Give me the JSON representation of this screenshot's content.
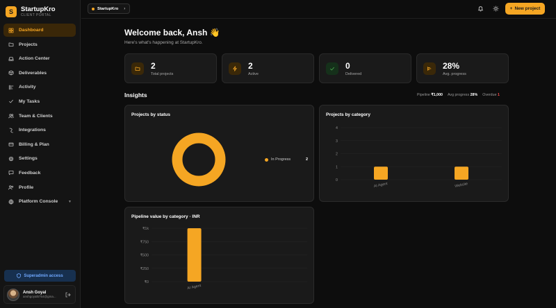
{
  "brand": {
    "name": "StartupKro",
    "subtitle": "CLIENT PORTAL",
    "logo_letter": "S"
  },
  "nav": [
    {
      "label": "Dashboard",
      "icon": "dashboard-icon",
      "active": true
    },
    {
      "label": "Projects",
      "icon": "folder-icon"
    },
    {
      "label": "Action Center",
      "icon": "inbox-icon"
    },
    {
      "label": "Deliverables",
      "icon": "package-icon"
    },
    {
      "label": "Activity",
      "icon": "activity-icon"
    },
    {
      "label": "My Tasks",
      "icon": "check-icon"
    },
    {
      "label": "Team & Clients",
      "icon": "users-icon"
    },
    {
      "label": "Integrations",
      "icon": "plug-icon"
    },
    {
      "label": "Billing & Plan",
      "icon": "card-icon"
    },
    {
      "label": "Settings",
      "icon": "gear-icon"
    },
    {
      "label": "Feedback",
      "icon": "message-icon"
    },
    {
      "label": "Profile",
      "icon": "profile-icon"
    },
    {
      "label": "Platform Console",
      "icon": "globe-icon",
      "chevron": "▼"
    }
  ],
  "superadmin": {
    "label": "Superadmin access"
  },
  "user": {
    "name": "Ansh Goyal",
    "email": "anshgoyal5754@gma..."
  },
  "topbar": {
    "workspace": "StartupKro",
    "new_project_label": "New project"
  },
  "welcome": {
    "title": "Welcome back, Ansh 👋",
    "subtitle": "Here's what's happening at StartupKro."
  },
  "stats": [
    {
      "value": "2",
      "label": "Total projects",
      "icon": "folder-icon",
      "color": "#f5a623",
      "bg": "#3a2808"
    },
    {
      "value": "2",
      "label": "Active",
      "icon": "bolt-icon",
      "color": "#f5a623",
      "bg": "#3a2808"
    },
    {
      "value": "0",
      "label": "Delivered",
      "icon": "check-icon",
      "color": "#4caf50",
      "bg": "#15301a"
    },
    {
      "value": "28%",
      "label": "Avg. progress",
      "icon": "progress-icon",
      "color": "#f5a623",
      "bg": "#3a2808"
    }
  ],
  "insights": {
    "title": "Insights",
    "pipeline_label": "Pipeline",
    "pipeline_value": "₹1,000",
    "progress_label": "Avg progress",
    "progress_value": "28%",
    "overdue_label": "Overdue",
    "overdue_value": "1"
  },
  "chart_data": [
    {
      "type": "pie",
      "title": "Projects by status",
      "categories": [
        "In Progress"
      ],
      "values": [
        2
      ],
      "colors": [
        "#f5a623"
      ],
      "legend": "right"
    },
    {
      "type": "bar",
      "title": "Projects by category",
      "categories": [
        "AI Agent",
        "Website"
      ],
      "values": [
        1,
        1
      ],
      "ylim": [
        0,
        4
      ],
      "yticks": [
        "0",
        "1",
        "2",
        "3",
        "4"
      ],
      "color": "#f5a623"
    },
    {
      "type": "bar",
      "title": "Pipeline value by category · INR",
      "categories": [
        "AI Agent"
      ],
      "values": [
        1000
      ],
      "ylim": [
        0,
        1000
      ],
      "yticks": [
        "₹0",
        "₹250",
        "₹500",
        "₹750",
        "₹1k"
      ],
      "color": "#f5a623"
    }
  ]
}
